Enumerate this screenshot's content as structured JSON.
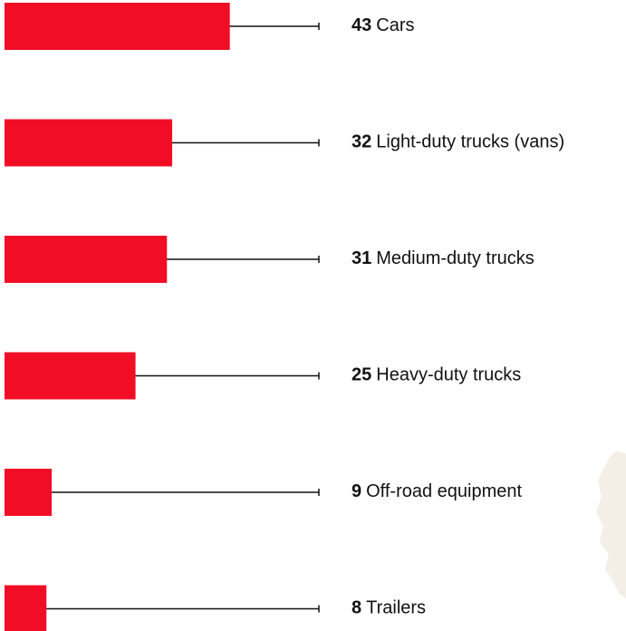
{
  "chart_data": {
    "type": "bar",
    "orientation": "horizontal",
    "categories": [
      "Cars",
      "Light-duty trucks (vans)",
      "Medium-duty trucks",
      "Heavy-duty trucks",
      "Off-road equipment",
      "Trailers"
    ],
    "values": [
      43,
      32,
      31,
      25,
      9,
      8
    ],
    "color": "#f20d26",
    "xlim": [
      0,
      60
    ]
  }
}
